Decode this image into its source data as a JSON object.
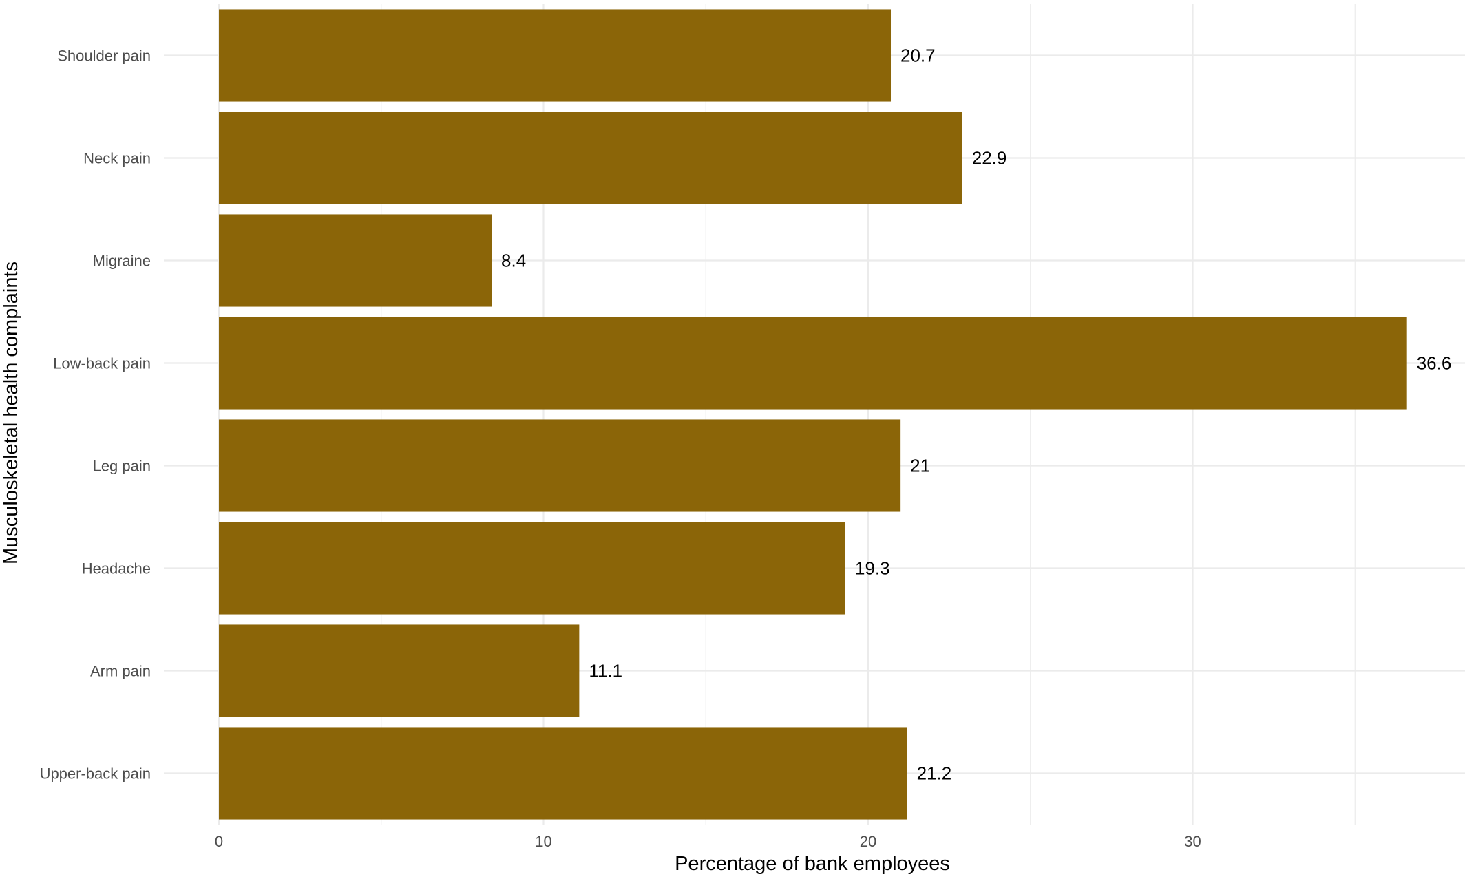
{
  "chart_data": {
    "type": "bar",
    "orientation": "horizontal",
    "categories": [
      "Upper-back pain",
      "Arm pain",
      "Headache",
      "Leg pain",
      "Low-back pain",
      "Migraine",
      "Neck pain",
      "Shoulder pain"
    ],
    "values": [
      21.2,
      11.1,
      19.3,
      21,
      36.6,
      8.4,
      22.9,
      20.7
    ],
    "data_labels": [
      "21.2",
      "11.1",
      "19.3",
      "21",
      "36.6",
      "8.4",
      "22.9",
      "20.7"
    ],
    "xlabel": "Percentage of bank employees",
    "ylabel": "Musculoskeletal health complaints",
    "x_ticks": [
      0,
      10,
      20,
      30
    ],
    "x_tick_labels": [
      "0",
      "10",
      "20",
      "30"
    ],
    "xlim": [
      0,
      38.4
    ],
    "bar_color": "#8B6508",
    "grid": true,
    "legend": "none"
  }
}
